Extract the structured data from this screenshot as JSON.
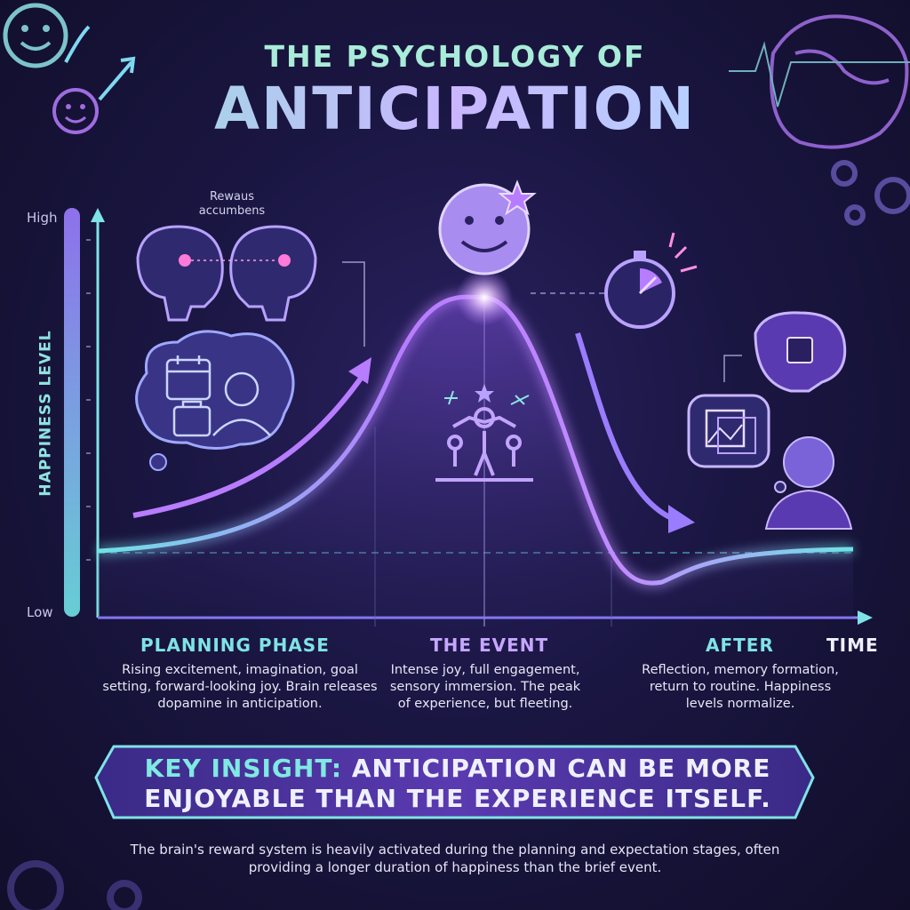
{
  "title": {
    "line1": "THE PSYCHOLOGY OF",
    "line2": "ANTICIPATION"
  },
  "y_axis": {
    "label": "HAPPINESS LEVEL",
    "high": "High",
    "low": "Low"
  },
  "x_axis": {
    "label": "TIME"
  },
  "brain_label": "Rewaus accumbens",
  "phases": [
    {
      "title": "PLANNING PHASE",
      "description": "Rising excitement, imagination, goal setting, forward-looking joy. Brain releases dopamine in anticipation.",
      "color": "#7fe3e6"
    },
    {
      "title": "THE EVENT",
      "description": "Intense joy, full engagement, sensory immersion. The peak of experience, but fleeting.",
      "color": "#c7a6ff"
    },
    {
      "title": "AFTER",
      "description": "Reflection, memory formation, return to routine. Happiness levels normalize.",
      "color": "#7fe3e6"
    }
  ],
  "key_insight": {
    "prefix": "KEY INSIGHT:",
    "text": "ANTICIPATION CAN BE MORE ENJOYABLE THAN THE EXPERIENCE ITSELF."
  },
  "footnote": "The brain's reward system is heavily activated during the planning and expectation stages, often providing a longer duration of happiness than the brief event.",
  "colors": {
    "cyan": "#6fe3e6",
    "purple": "#b77cff",
    "background": "#14112e"
  },
  "icons": [
    "smiley-face-icon",
    "brain-icon",
    "gear-icon",
    "stopwatch-icon",
    "calendar-icon",
    "suitcase-icon",
    "person-icon",
    "photo-icon",
    "chip-brain-icon",
    "celebration-icon",
    "star-icon"
  ]
}
